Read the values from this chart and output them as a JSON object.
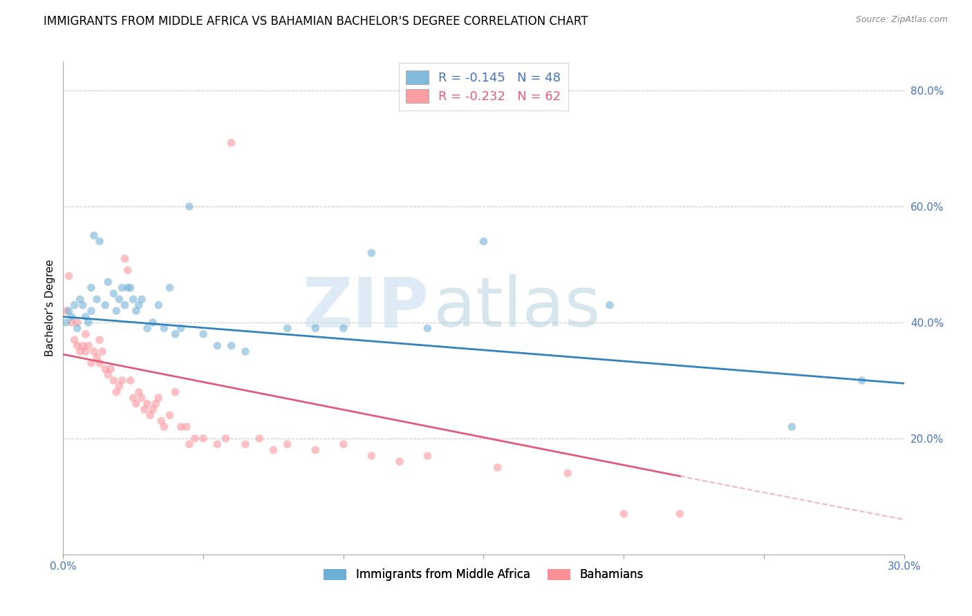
{
  "title": "IMMIGRANTS FROM MIDDLE AFRICA VS BAHAMIAN BACHELOR'S DEGREE CORRELATION CHART",
  "source": "Source: ZipAtlas.com",
  "ylabel": "Bachelor's Degree",
  "xlim": [
    0.0,
    0.3
  ],
  "ylim": [
    0.0,
    0.85
  ],
  "xticks": [
    0.0,
    0.05,
    0.1,
    0.15,
    0.2,
    0.25,
    0.3
  ],
  "xticklabels": [
    "0.0%",
    "",
    "",
    "",
    "",
    "",
    "30.0%"
  ],
  "yticks_right": [
    0.2,
    0.4,
    0.6,
    0.8
  ],
  "ytick_labels_right": [
    "20.0%",
    "40.0%",
    "60.0%",
    "80.0%"
  ],
  "blue_R": -0.145,
  "blue_N": 48,
  "pink_R": -0.232,
  "pink_N": 62,
  "blue_color": "#6baed6",
  "pink_color": "#fc8d94",
  "blue_line_color": "#3182bd",
  "pink_line_color": "#e05c7a",
  "watermark_zip": "ZIP",
  "watermark_atlas": "atlas",
  "legend_label_blue": "Immigrants from Middle Africa",
  "legend_label_pink": "Bahamians",
  "blue_scatter_x": [
    0.001,
    0.002,
    0.003,
    0.004,
    0.005,
    0.006,
    0.007,
    0.008,
    0.009,
    0.01,
    0.01,
    0.011,
    0.012,
    0.013,
    0.015,
    0.016,
    0.018,
    0.019,
    0.02,
    0.021,
    0.022,
    0.023,
    0.024,
    0.025,
    0.026,
    0.027,
    0.028,
    0.03,
    0.032,
    0.034,
    0.036,
    0.038,
    0.04,
    0.042,
    0.045,
    0.05,
    0.055,
    0.06,
    0.065,
    0.08,
    0.09,
    0.1,
    0.11,
    0.13,
    0.15,
    0.195,
    0.26,
    0.285
  ],
  "blue_scatter_y": [
    0.4,
    0.42,
    0.41,
    0.43,
    0.39,
    0.44,
    0.43,
    0.41,
    0.4,
    0.42,
    0.46,
    0.55,
    0.44,
    0.54,
    0.43,
    0.47,
    0.45,
    0.42,
    0.44,
    0.46,
    0.43,
    0.46,
    0.46,
    0.44,
    0.42,
    0.43,
    0.44,
    0.39,
    0.4,
    0.43,
    0.39,
    0.46,
    0.38,
    0.39,
    0.6,
    0.38,
    0.36,
    0.36,
    0.35,
    0.39,
    0.39,
    0.39,
    0.52,
    0.39,
    0.54,
    0.43,
    0.22,
    0.3
  ],
  "pink_scatter_x": [
    0.001,
    0.002,
    0.003,
    0.004,
    0.005,
    0.005,
    0.006,
    0.007,
    0.008,
    0.008,
    0.009,
    0.01,
    0.011,
    0.012,
    0.013,
    0.013,
    0.014,
    0.015,
    0.016,
    0.017,
    0.018,
    0.019,
    0.02,
    0.021,
    0.022,
    0.023,
    0.024,
    0.025,
    0.026,
    0.027,
    0.028,
    0.029,
    0.03,
    0.031,
    0.032,
    0.033,
    0.034,
    0.035,
    0.036,
    0.038,
    0.04,
    0.042,
    0.044,
    0.045,
    0.047,
    0.05,
    0.055,
    0.058,
    0.06,
    0.065,
    0.07,
    0.075,
    0.08,
    0.09,
    0.1,
    0.11,
    0.12,
    0.13,
    0.155,
    0.18,
    0.2,
    0.22
  ],
  "pink_scatter_y": [
    0.42,
    0.48,
    0.4,
    0.37,
    0.4,
    0.36,
    0.35,
    0.36,
    0.38,
    0.35,
    0.36,
    0.33,
    0.35,
    0.34,
    0.33,
    0.37,
    0.35,
    0.32,
    0.31,
    0.32,
    0.3,
    0.28,
    0.29,
    0.3,
    0.51,
    0.49,
    0.3,
    0.27,
    0.26,
    0.28,
    0.27,
    0.25,
    0.26,
    0.24,
    0.25,
    0.26,
    0.27,
    0.23,
    0.22,
    0.24,
    0.28,
    0.22,
    0.22,
    0.19,
    0.2,
    0.2,
    0.19,
    0.2,
    0.71,
    0.19,
    0.2,
    0.18,
    0.19,
    0.18,
    0.19,
    0.17,
    0.16,
    0.17,
    0.15,
    0.14,
    0.07,
    0.07
  ],
  "blue_line_x0": 0.0,
  "blue_line_y0": 0.41,
  "blue_line_x1": 0.3,
  "blue_line_y1": 0.295,
  "pink_line_x0": 0.0,
  "pink_line_y0": 0.345,
  "pink_line_x1_solid": 0.22,
  "pink_line_y1_solid": 0.135,
  "pink_line_x1_dash": 0.3,
  "pink_line_y1_dash": 0.06,
  "grid_color": "#cccccc",
  "background_color": "#ffffff",
  "title_fontsize": 12,
  "axis_label_fontsize": 11,
  "tick_fontsize": 11,
  "marker_size": 70,
  "marker_alpha": 0.55
}
